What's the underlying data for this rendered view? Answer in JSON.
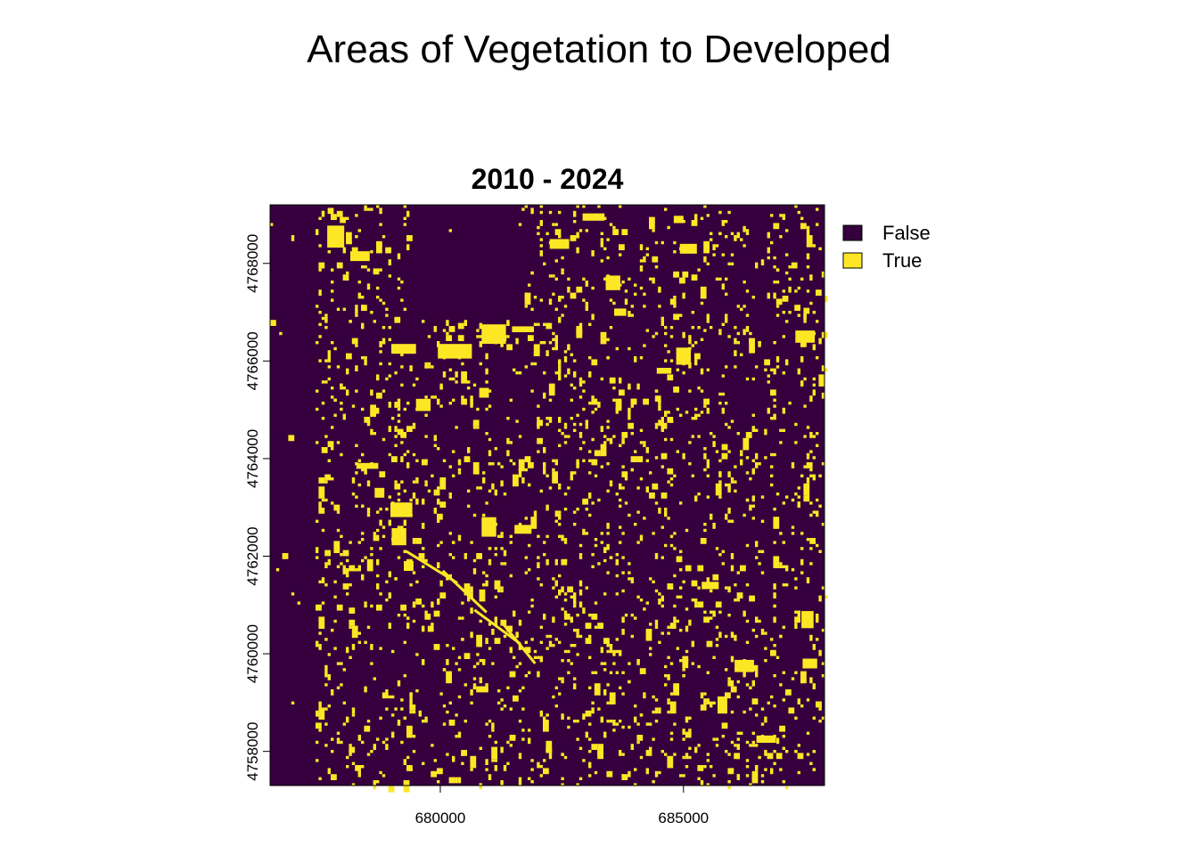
{
  "figure": {
    "title": "Areas of Vegetation to Developed"
  },
  "chart_data": {
    "type": "heatmap",
    "title": "2010 - 2024",
    "xlabel": "",
    "ylabel": "",
    "xlim": [
      676500,
      687900
    ],
    "ylim": [
      4757300,
      4769200
    ],
    "x_ticks": [
      {
        "value": 680000,
        "label": "680000"
      },
      {
        "value": 685000,
        "label": "685000"
      }
    ],
    "y_ticks": [
      {
        "value": 4758000,
        "label": "4758000"
      },
      {
        "value": 4760000,
        "label": "4760000"
      },
      {
        "value": 4762000,
        "label": "4762000"
      },
      {
        "value": 4764000,
        "label": "4764000"
      },
      {
        "value": 4766000,
        "label": "4766000"
      },
      {
        "value": 4768000,
        "label": "4768000"
      }
    ],
    "classes": [
      {
        "label": "False",
        "color": "#35003d"
      },
      {
        "label": "True",
        "color": "#fde725"
      }
    ],
    "legend_position": "right",
    "grid": false,
    "developed_patches_approx": [
      {
        "x": 677850,
        "y": 4768550,
        "w": 350,
        "h": 450
      },
      {
        "x": 678350,
        "y": 4768150,
        "w": 400,
        "h": 200
      },
      {
        "x": 679250,
        "y": 4766250,
        "w": 500,
        "h": 200
      },
      {
        "x": 680300,
        "y": 4766200,
        "w": 700,
        "h": 300
      },
      {
        "x": 681100,
        "y": 4766550,
        "w": 500,
        "h": 400
      },
      {
        "x": 681700,
        "y": 4766650,
        "w": 450,
        "h": 120
      },
      {
        "x": 682450,
        "y": 4768400,
        "w": 400,
        "h": 200
      },
      {
        "x": 683150,
        "y": 4768950,
        "w": 450,
        "h": 150
      },
      {
        "x": 683550,
        "y": 4767600,
        "w": 300,
        "h": 300
      },
      {
        "x": 683700,
        "y": 4767000,
        "w": 250,
        "h": 150
      },
      {
        "x": 684600,
        "y": 4765800,
        "w": 300,
        "h": 120
      },
      {
        "x": 685000,
        "y": 4766100,
        "w": 300,
        "h": 350
      },
      {
        "x": 685100,
        "y": 4768300,
        "w": 350,
        "h": 200
      },
      {
        "x": 687500,
        "y": 4766500,
        "w": 400,
        "h": 250
      },
      {
        "x": 678500,
        "y": 4763850,
        "w": 450,
        "h": 120
      },
      {
        "x": 678750,
        "y": 4763300,
        "w": 200,
        "h": 200
      },
      {
        "x": 679200,
        "y": 4762950,
        "w": 450,
        "h": 300
      },
      {
        "x": 679150,
        "y": 4762400,
        "w": 300,
        "h": 350
      },
      {
        "x": 681000,
        "y": 4762600,
        "w": 300,
        "h": 400
      },
      {
        "x": 680900,
        "y": 4765350,
        "w": 200,
        "h": 200
      },
      {
        "x": 679650,
        "y": 4765100,
        "w": 300,
        "h": 250
      },
      {
        "x": 679350,
        "y": 4761800,
        "w": 200,
        "h": 200
      },
      {
        "x": 685550,
        "y": 4761400,
        "w": 350,
        "h": 150
      },
      {
        "x": 686250,
        "y": 4759750,
        "w": 400,
        "h": 250
      },
      {
        "x": 687550,
        "y": 4760700,
        "w": 250,
        "h": 350
      },
      {
        "x": 685800,
        "y": 4758950,
        "w": 200,
        "h": 350
      },
      {
        "x": 687600,
        "y": 4759800,
        "w": 300,
        "h": 200
      },
      {
        "x": 681700,
        "y": 4762550,
        "w": 350,
        "h": 180
      },
      {
        "x": 684900,
        "y": 4768900,
        "w": 200,
        "h": 150
      },
      {
        "x": 686700,
        "y": 4758250,
        "w": 400,
        "h": 150
      }
    ],
    "developed_linear_features_approx": [
      {
        "from": [
          679300,
          4762100
        ],
        "to": [
          680350,
          4761450
        ]
      },
      {
        "from": [
          680050,
          4761700
        ],
        "to": [
          680950,
          4760850
        ]
      },
      {
        "from": [
          680700,
          4760900
        ],
        "to": [
          681650,
          4760200
        ]
      },
      {
        "from": [
          681300,
          4760600
        ],
        "to": [
          681950,
          4759800
        ]
      }
    ]
  }
}
